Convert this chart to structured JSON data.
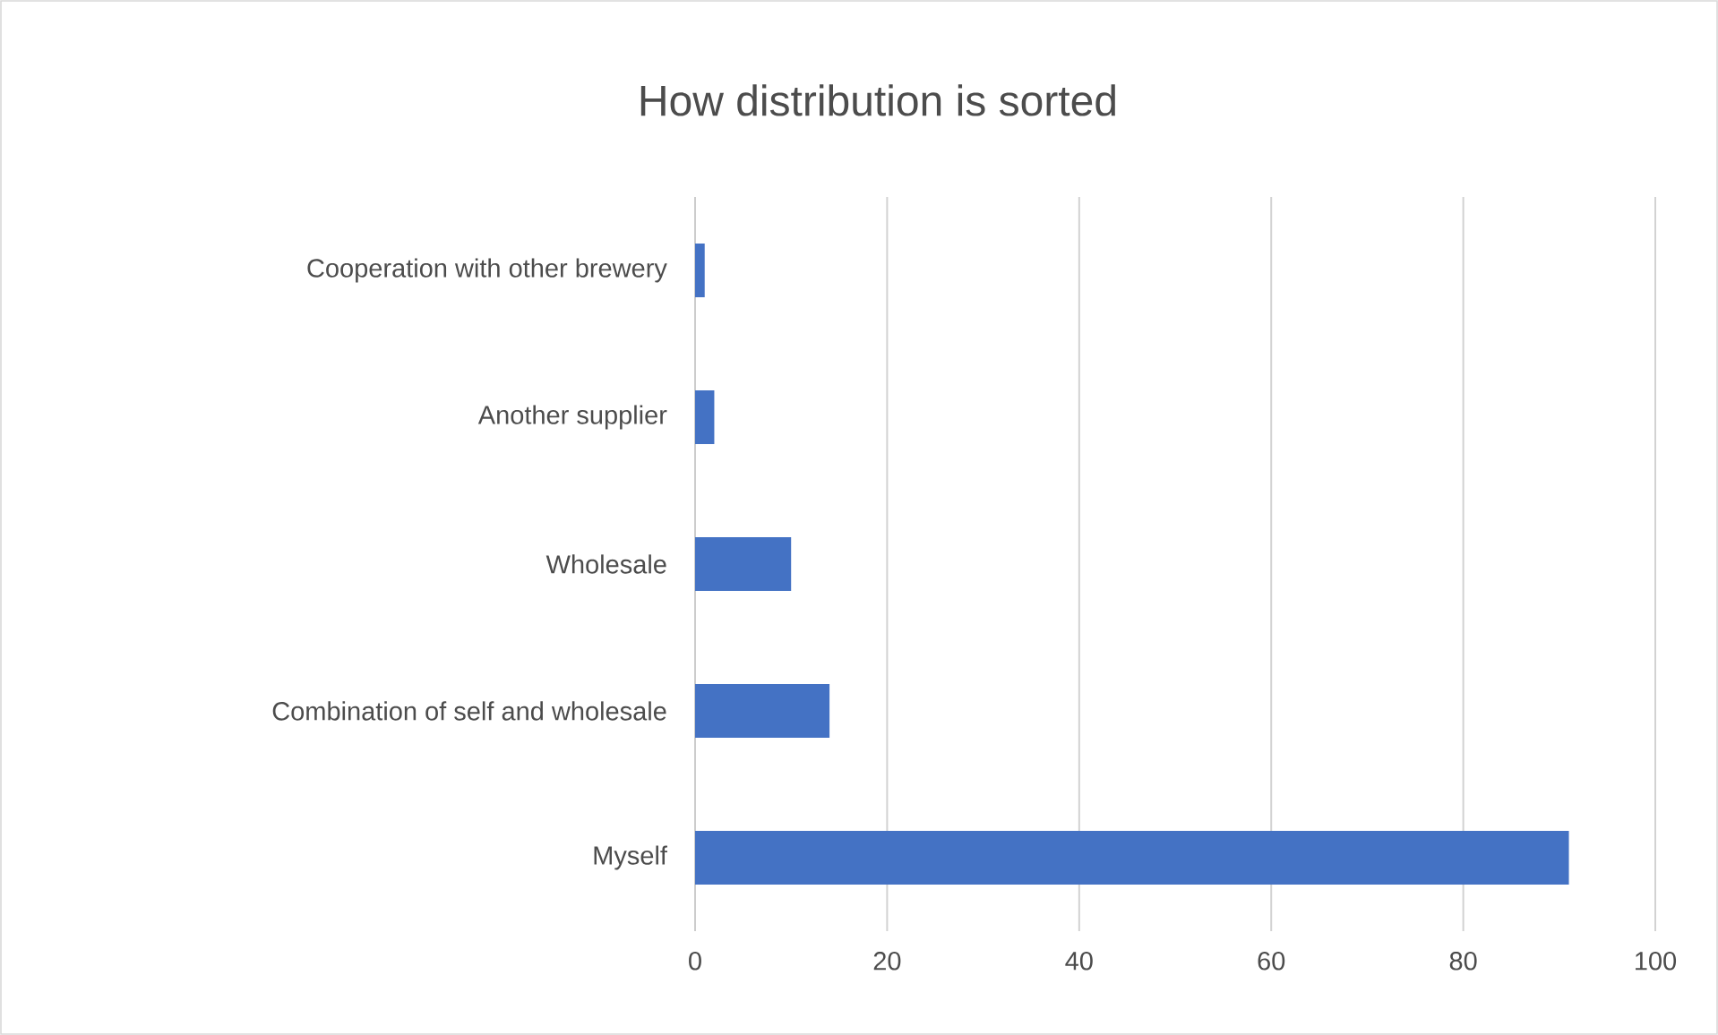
{
  "chart_data": {
    "type": "bar",
    "orientation": "horizontal",
    "title": "How distribution is sorted",
    "categories": [
      "Cooperation with other brewery",
      "Another supplier",
      "Wholesale",
      "Combination of self and wholesale",
      "Myself"
    ],
    "values": [
      1,
      2,
      10,
      14,
      91
    ],
    "color": "#4472c4",
    "xlim": [
      0,
      100
    ],
    "xticks": [
      0,
      20,
      40,
      60,
      80,
      100
    ],
    "grid": "x"
  }
}
